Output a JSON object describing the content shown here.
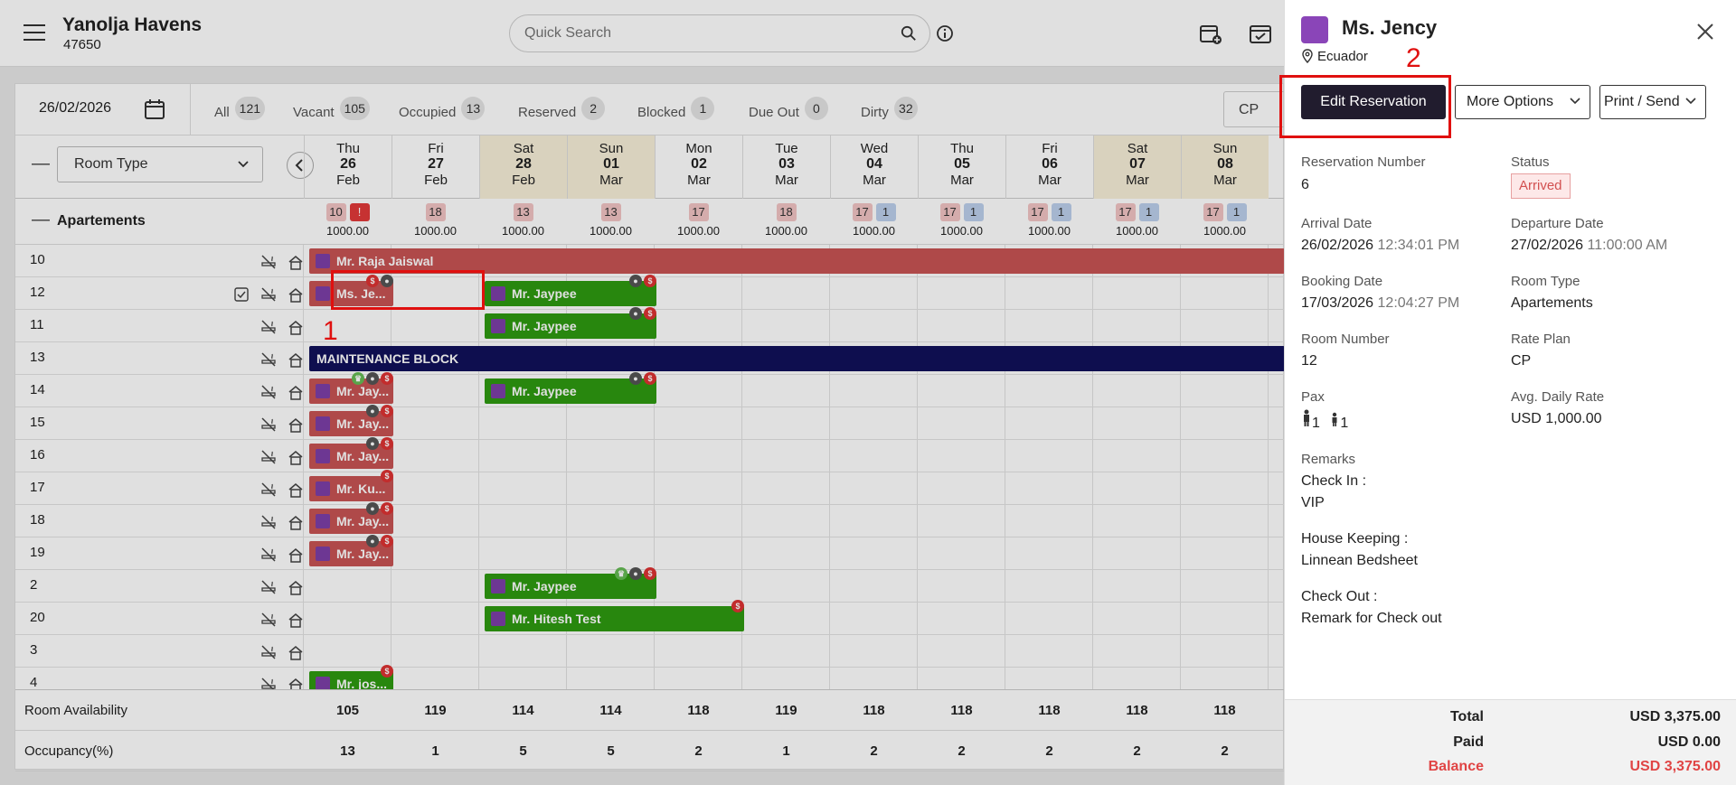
{
  "header": {
    "hotel_name": "Yanolja Havens",
    "hotel_code": "47650",
    "search_placeholder": "Quick Search"
  },
  "filterbar": {
    "date": "26/02/2026",
    "filters": [
      {
        "label": "All",
        "count": "121"
      },
      {
        "label": "Vacant",
        "count": "105"
      },
      {
        "label": "Occupied",
        "count": "13"
      },
      {
        "label": "Reserved",
        "count": "2"
      },
      {
        "label": "Blocked",
        "count": "1"
      },
      {
        "label": "Due Out",
        "count": "0"
      },
      {
        "label": "Dirty",
        "count": "32"
      }
    ],
    "rate_select": "CP"
  },
  "grid": {
    "collapse_symbol": "—",
    "room_type_select": "Room Type",
    "days": [
      {
        "dow": "Thu",
        "date": "26",
        "month": "Feb",
        "weekend": false,
        "counts": [
          "10",
          "!"
        ],
        "price": "1000.00"
      },
      {
        "dow": "Fri",
        "date": "27",
        "month": "Feb",
        "weekend": false,
        "counts": [
          "18"
        ],
        "price": "1000.00"
      },
      {
        "dow": "Sat",
        "date": "28",
        "month": "Feb",
        "weekend": true,
        "counts": [
          "13"
        ],
        "price": "1000.00"
      },
      {
        "dow": "Sun",
        "date": "01",
        "month": "Mar",
        "weekend": true,
        "counts": [
          "13"
        ],
        "price": "1000.00"
      },
      {
        "dow": "Mon",
        "date": "02",
        "month": "Mar",
        "weekend": false,
        "counts": [
          "17"
        ],
        "price": "1000.00"
      },
      {
        "dow": "Tue",
        "date": "03",
        "month": "Mar",
        "weekend": false,
        "counts": [
          "18"
        ],
        "price": "1000.00"
      },
      {
        "dow": "Wed",
        "date": "04",
        "month": "Mar",
        "weekend": false,
        "counts": [
          "17",
          "1"
        ],
        "price": "1000.00"
      },
      {
        "dow": "Thu",
        "date": "05",
        "month": "Mar",
        "weekend": false,
        "counts": [
          "17",
          "1"
        ],
        "price": "1000.00"
      },
      {
        "dow": "Fri",
        "date": "06",
        "month": "Mar",
        "weekend": false,
        "counts": [
          "17",
          "1"
        ],
        "price": "1000.00"
      },
      {
        "dow": "Sat",
        "date": "07",
        "month": "Mar",
        "weekend": true,
        "counts": [
          "17",
          "1"
        ],
        "price": "1000.00"
      },
      {
        "dow": "Sun",
        "date": "08",
        "month": "Mar",
        "weekend": true,
        "counts": [
          "17",
          "1"
        ],
        "price": "1000.00"
      }
    ],
    "group_label": "Apartements",
    "rooms": [
      "10",
      "12",
      "11",
      "13",
      "14",
      "15",
      "16",
      "17",
      "18",
      "19",
      "2",
      "20",
      "3",
      "4"
    ],
    "reservations": [
      {
        "room_index": 0,
        "guest": "Mr. Raja Jaiswal",
        "color": "red"
      },
      {
        "room_index": 1,
        "guest": "Ms. Je...",
        "color": "red"
      },
      {
        "room_index": 1,
        "guest": "Mr. Jaypee",
        "color": "green"
      },
      {
        "room_index": 2,
        "guest": "Mr. Jaypee",
        "color": "green"
      },
      {
        "room_index": 3,
        "guest": "MAINTENANCE BLOCK",
        "color": "navy"
      },
      {
        "room_index": 4,
        "guest": "Mr. Jay...",
        "color": "red"
      },
      {
        "room_index": 4,
        "guest": "Mr. Jaypee",
        "color": "green"
      },
      {
        "room_index": 5,
        "guest": "Mr. Jay...",
        "color": "red"
      },
      {
        "room_index": 6,
        "guest": "Mr. Jay...",
        "color": "red"
      },
      {
        "room_index": 7,
        "guest": "Mr. Ku...",
        "color": "red"
      },
      {
        "room_index": 8,
        "guest": "Mr. Jay...",
        "color": "red"
      },
      {
        "room_index": 9,
        "guest": "Mr. Jay...",
        "color": "red"
      },
      {
        "room_index": 10,
        "guest": "Mr. Jaypee",
        "color": "green"
      },
      {
        "room_index": 11,
        "guest": "Mr. Hitesh Test",
        "color": "green"
      },
      {
        "room_index": 13,
        "guest": "Mr. jos...",
        "color": "green"
      }
    ],
    "footer": {
      "availability_label": "Room Availability",
      "availability": [
        "105",
        "119",
        "114",
        "114",
        "118",
        "119",
        "118",
        "118",
        "118",
        "118",
        "118"
      ],
      "occupancy_label": "Occupancy(%)",
      "occupancy": [
        "13",
        "1",
        "5",
        "5",
        "2",
        "1",
        "2",
        "2",
        "2",
        "2",
        "2"
      ]
    }
  },
  "panel": {
    "guest_name": "Ms. Jency",
    "location": "Ecuador",
    "buttons": {
      "edit": "Edit Reservation",
      "more": "More Options",
      "print": "Print / Send"
    },
    "fields": {
      "reservation_number_label": "Reservation Number",
      "reservation_number": "6",
      "status_label": "Status",
      "status": "Arrived",
      "arrival_label": "Arrival Date",
      "arrival_date": "26/02/2026",
      "arrival_time": "12:34:01 PM",
      "departure_label": "Departure Date",
      "departure_date": "27/02/2026",
      "departure_time": "11:00:00 AM",
      "booking_label": "Booking Date",
      "booking_date": "17/03/2026",
      "booking_time": "12:04:27 PM",
      "room_type_label": "Room Type",
      "room_type": "Apartements",
      "room_number_label": "Room Number",
      "room_number": "12",
      "rate_plan_label": "Rate Plan",
      "rate_plan": "CP",
      "pax_label": "Pax",
      "pax_adults": "1",
      "pax_children": "1",
      "adr_label": "Avg. Daily Rate",
      "adr": "USD 1,000.00",
      "remarks_label": "Remarks",
      "check_in_label": "Check In :",
      "check_in": "VIP",
      "housekeeping_label": "House Keeping :",
      "housekeeping": "Linnean Bedsheet",
      "check_out_label": "Check Out :",
      "check_out": "Remark for Check out"
    },
    "totals": {
      "total_label": "Total",
      "total": "USD 3,375.00",
      "paid_label": "Paid",
      "paid": "USD 0.00",
      "balance_label": "Balance",
      "balance": "USD 3,375.00"
    }
  },
  "annotations": {
    "marker_1": "1",
    "marker_2": "2"
  },
  "colors": {
    "reserved": "#c85454",
    "occupied": "#2e9a10",
    "blocked": "#10105a",
    "highlight": "#e0100f",
    "primary_button": "#211c2e"
  }
}
